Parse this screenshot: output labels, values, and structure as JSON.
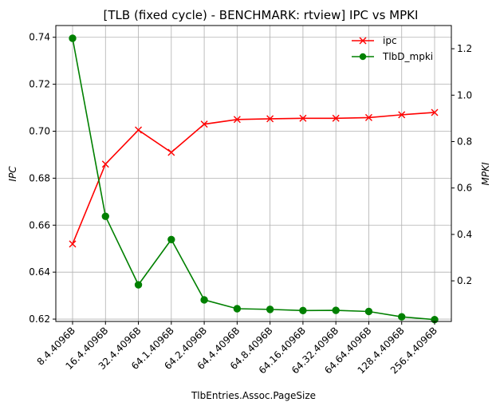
{
  "chart_data": {
    "type": "line",
    "title": "[TLB (fixed cycle) - BENCHMARK: rtview]  IPC vs MPKI",
    "xlabel": "TlbEntries.Assoc.PageSize",
    "ylabel_left": "IPC",
    "ylabel_right": "MPKI",
    "categories": [
      "8.4.4096B",
      "16.4.4096B",
      "32.4.4096B",
      "64.1.4096B",
      "64.2.4096B",
      "64.4.4096B",
      "64.8.4096B",
      "64.16.4096B",
      "64.32.4096B",
      "64.64.4096B",
      "128.4.4096B",
      "256.4.4096B"
    ],
    "ylim_left": [
      0.619,
      0.745
    ],
    "ylim_right": [
      0.025,
      1.3
    ],
    "yticks_left": [
      "0.62",
      "0.64",
      "0.66",
      "0.68",
      "0.70",
      "0.72",
      "0.74"
    ],
    "yticks_right": [
      "0.2",
      "0.4",
      "0.6",
      "0.8",
      "1.0",
      "1.2"
    ],
    "grid": true,
    "legend_position": "upper-right",
    "series": [
      {
        "name": "ipc",
        "axis": "left",
        "color": "#ff0000",
        "marker": "x",
        "values": [
          0.652,
          0.686,
          0.7005,
          0.691,
          0.703,
          0.705,
          0.7053,
          0.7055,
          0.7055,
          0.7058,
          0.707,
          0.708
        ]
      },
      {
        "name": "TlbD_mpki",
        "axis": "right",
        "color": "#008000",
        "marker": "o",
        "values": [
          1.245,
          0.478,
          0.183,
          0.378,
          0.118,
          0.08,
          0.077,
          0.072,
          0.073,
          0.068,
          0.045,
          0.033
        ]
      }
    ]
  }
}
